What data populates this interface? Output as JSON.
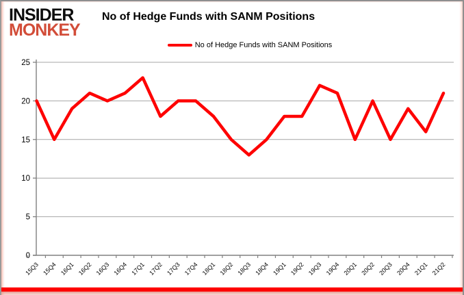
{
  "logo": {
    "line1": "INSIDER",
    "line2": "MONKEY"
  },
  "title": "No of Hedge Funds with SANM Positions",
  "legend": {
    "label": "No of Hedge Funds with SANM Positions"
  },
  "colors": {
    "line": "#fe0000",
    "legend_swatch": "#fe0000",
    "logo_black": "#0d0d0d",
    "logo_red": "#d24d39",
    "grid": "#a6a6a6",
    "axis": "#808080",
    "tick_text": "#000000",
    "bottom_bar": "#fe0000"
  },
  "chart_data": {
    "type": "line",
    "title": "No of Hedge Funds with SANM Positions",
    "categories": [
      "15Q3",
      "15Q4",
      "16Q1",
      "16Q2",
      "16Q3",
      "16Q4",
      "17Q1",
      "17Q2",
      "17Q3",
      "17Q4",
      "18Q1",
      "18Q2",
      "18Q3",
      "18Q4",
      "19Q1",
      "19Q2",
      "19Q3",
      "19Q4",
      "20Q1",
      "20Q2",
      "20Q3",
      "20Q4",
      "21Q1",
      "21Q2"
    ],
    "series": [
      {
        "name": "No of Hedge Funds with SANM Positions",
        "values": [
          20,
          15,
          19,
          21,
          20,
          21,
          23,
          18,
          20,
          20,
          18,
          15,
          13,
          15,
          18,
          18,
          22,
          21,
          15,
          20,
          15,
          19,
          16,
          21
        ]
      }
    ],
    "xlabel": "",
    "ylabel": "",
    "ylim": [
      0,
      25
    ],
    "yticks": [
      0,
      5,
      10,
      15,
      20,
      25
    ],
    "grid": true,
    "legend_position": "top"
  }
}
